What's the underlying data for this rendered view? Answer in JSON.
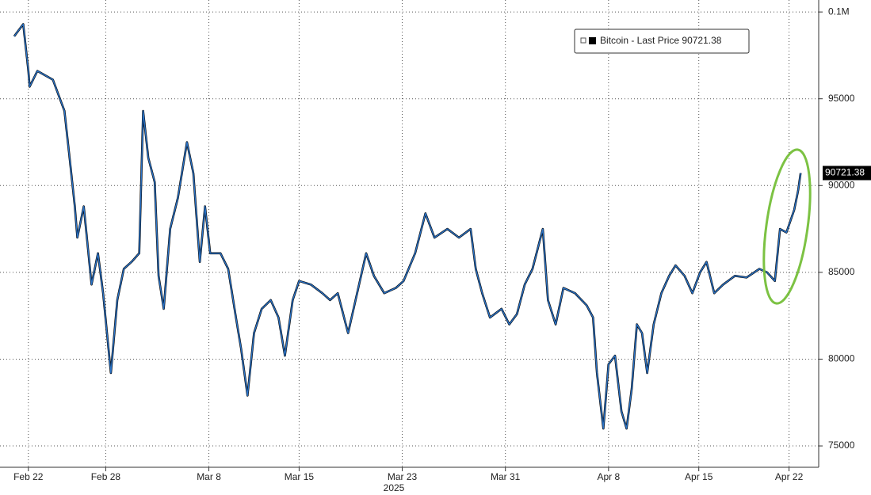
{
  "chart_data": {
    "type": "line",
    "x": [
      -1.1,
      -0.4,
      0.0,
      0.1,
      0.7,
      1.9,
      2.8,
      3.2,
      3.6,
      3.8,
      4.3,
      4.9,
      5.4,
      5.8,
      6.4,
      6.9,
      7.4,
      8.0,
      8.6,
      8.9,
      9.3,
      9.8,
      10.1,
      10.5,
      11.0,
      11.6,
      12.3,
      12.8,
      13.3,
      13.7,
      14.1,
      14.9,
      15.5,
      16.1,
      16.5,
      17.0,
      17.5,
      18.1,
      18.8,
      19.4,
      19.9,
      20.5,
      21.0,
      21.9,
      22.8,
      23.4,
      24.0,
      24.8,
      25.5,
      26.2,
      26.8,
      27.6,
      28.5,
      29.1,
      30.0,
      30.8,
      31.5,
      32.5,
      33.4,
      34.3,
      34.7,
      35.2,
      35.8,
      36.7,
      37.3,
      37.9,
      38.5,
      39.1,
      39.9,
      40.3,
      40.9,
      41.5,
      42.4,
      43.3,
      43.8,
      44.1,
      44.6,
      45.0,
      45.5,
      46.0,
      46.4,
      46.8,
      47.2,
      47.6,
      48.0,
      48.5,
      49.1,
      49.7,
      50.2,
      50.9,
      51.5,
      52.1,
      52.6,
      53.2,
      53.9,
      54.8,
      55.7,
      56.7,
      57.3,
      57.9,
      58.3,
      58.8,
      59.4,
      59.7,
      59.9
    ],
    "series": [
      {
        "name": "Bitcoin - Last Price",
        "color": "#2a73c8",
        "values": [
          98600,
          99300,
          96600,
          95700,
          96600,
          96100,
          94300,
          91600,
          88800,
          87000,
          88800,
          84300,
          86100,
          83800,
          79200,
          83400,
          85200,
          85600,
          86100,
          94300,
          91600,
          90200,
          84800,
          82900,
          87500,
          89300,
          92500,
          90700,
          85600,
          88800,
          86100,
          86100,
          85200,
          82400,
          80600,
          77900,
          81500,
          82900,
          83400,
          82400,
          80200,
          83400,
          84500,
          84300,
          83800,
          83400,
          83800,
          81500,
          83800,
          86100,
          84800,
          83800,
          84100,
          84500,
          86100,
          88400,
          87000,
          87500,
          87000,
          87500,
          85200,
          83800,
          82400,
          82900,
          82000,
          82600,
          84300,
          85200,
          87500,
          83400,
          82000,
          84100,
          83800,
          83100,
          82400,
          79200,
          76000,
          79700,
          80200,
          77000,
          76000,
          78300,
          82000,
          81500,
          79200,
          82000,
          83800,
          84800,
          85400,
          84800,
          83800,
          85000,
          85600,
          83800,
          84300,
          84800,
          84700,
          85200,
          85000,
          84500,
          87500,
          87300,
          88600,
          89700,
          90721.38
        ]
      }
    ],
    "last_value": 90721.38,
    "xlim": [
      -2.2,
      61.3
    ],
    "xticks": [
      {
        "value": 0,
        "label": "Feb 22"
      },
      {
        "value": 6,
        "label": "Feb 28"
      },
      {
        "value": 14,
        "label": "Mar 8"
      },
      {
        "value": 21,
        "label": "Mar 15"
      },
      {
        "value": 29,
        "label": "Mar 23"
      },
      {
        "value": 37,
        "label": "Mar 31"
      },
      {
        "value": 45,
        "label": "Apr 8"
      },
      {
        "value": 52,
        "label": "Apr 15"
      },
      {
        "value": 59,
        "label": "Apr 22"
      }
    ],
    "xlabel": "2025",
    "ylim": [
      73770,
      100690
    ],
    "yticks": [
      {
        "value": 100000,
        "label": "0.1M"
      },
      95000,
      90000,
      85000,
      80000,
      75000
    ],
    "grid": true
  }
}
